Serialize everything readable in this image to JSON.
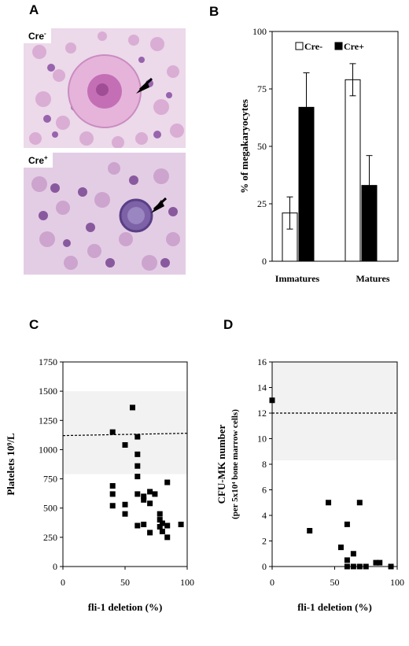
{
  "panels": {
    "a": {
      "letter": "A",
      "top_label": "Cre",
      "top_sup": "-",
      "bottom_label": "Cre",
      "bottom_sup": "+"
    },
    "b": {
      "letter": "B"
    },
    "c": {
      "letter": "C"
    },
    "d": {
      "letter": "D"
    }
  },
  "colors": {
    "cre_minus": "#ffffff",
    "cre_plus": "#000000",
    "reference_band": "#f2f2f2",
    "stain_pink": "#d9a6d0",
    "stain_purple": "#8a4fa3"
  },
  "chart_data": [
    {
      "id": "B",
      "type": "bar",
      "categories": [
        "Immatures",
        "Matures"
      ],
      "series": [
        {
          "name": "Cre-",
          "values": [
            21,
            79
          ],
          "errors": [
            7,
            7
          ],
          "color": "#ffffff"
        },
        {
          "name": "Cre+",
          "values": [
            67,
            33
          ],
          "errors": [
            15,
            13
          ],
          "color": "#000000"
        }
      ],
      "ylabel": "% of megakaryocytes",
      "ylim": [
        0,
        100
      ],
      "yticks": [
        0,
        25,
        50,
        75,
        100
      ],
      "legend": "top"
    },
    {
      "id": "C",
      "type": "scatter",
      "xlabel": "fli-1 deletion (%)",
      "ylabel": "Platelets 10⁹/L",
      "xlim": [
        0,
        100
      ],
      "ylim": [
        0,
        1750
      ],
      "xticks": [
        0,
        50,
        100
      ],
      "yticks": [
        0,
        250,
        500,
        750,
        1000,
        1250,
        1500,
        1750
      ],
      "reference_band": [
        790,
        1500
      ],
      "reference_line": {
        "x_start": 0,
        "x_end": 100,
        "y_start": 1120,
        "y_end": 1140
      },
      "points": [
        {
          "x": 40,
          "y": 1150
        },
        {
          "x": 40,
          "y": 690
        },
        {
          "x": 40,
          "y": 620
        },
        {
          "x": 40,
          "y": 520
        },
        {
          "x": 50,
          "y": 1040
        },
        {
          "x": 50,
          "y": 530
        },
        {
          "x": 50,
          "y": 450
        },
        {
          "x": 56,
          "y": 1360
        },
        {
          "x": 60,
          "y": 1110
        },
        {
          "x": 60,
          "y": 960
        },
        {
          "x": 60,
          "y": 860
        },
        {
          "x": 60,
          "y": 770
        },
        {
          "x": 60,
          "y": 620
        },
        {
          "x": 60,
          "y": 350
        },
        {
          "x": 65,
          "y": 600
        },
        {
          "x": 65,
          "y": 570
        },
        {
          "x": 65,
          "y": 360
        },
        {
          "x": 70,
          "y": 640
        },
        {
          "x": 70,
          "y": 540
        },
        {
          "x": 70,
          "y": 290
        },
        {
          "x": 74,
          "y": 620
        },
        {
          "x": 78,
          "y": 450
        },
        {
          "x": 78,
          "y": 400
        },
        {
          "x": 78,
          "y": 340
        },
        {
          "x": 80,
          "y": 370
        },
        {
          "x": 80,
          "y": 300
        },
        {
          "x": 84,
          "y": 720
        },
        {
          "x": 84,
          "y": 350
        },
        {
          "x": 84,
          "y": 250
        },
        {
          "x": 95,
          "y": 360
        }
      ]
    },
    {
      "id": "D",
      "type": "scatter",
      "xlabel": "fli-1 deletion (%)",
      "ylabel": "CFU-MK number",
      "ylabel2": "(per 5x10⁴ bone marrow cells)",
      "xlim": [
        0,
        100
      ],
      "ylim": [
        0,
        16
      ],
      "xticks": [
        0,
        50,
        100
      ],
      "yticks": [
        0,
        2,
        4,
        6,
        8,
        10,
        12,
        14,
        16
      ],
      "reference_band": [
        8.3,
        16
      ],
      "reference_line": {
        "x_start": 0,
        "x_end": 100,
        "y_start": 12,
        "y_end": 12
      },
      "points": [
        {
          "x": 0,
          "y": 13
        },
        {
          "x": 30,
          "y": 2.8
        },
        {
          "x": 45,
          "y": 5
        },
        {
          "x": 55,
          "y": 1.5
        },
        {
          "x": 60,
          "y": 3.3
        },
        {
          "x": 60,
          "y": 0.5
        },
        {
          "x": 60,
          "y": 0
        },
        {
          "x": 65,
          "y": 1
        },
        {
          "x": 65,
          "y": 0
        },
        {
          "x": 70,
          "y": 5
        },
        {
          "x": 70,
          "y": 0
        },
        {
          "x": 75,
          "y": 0
        },
        {
          "x": 83,
          "y": 0.3
        },
        {
          "x": 86,
          "y": 0.3
        },
        {
          "x": 95,
          "y": 0
        }
      ]
    }
  ]
}
